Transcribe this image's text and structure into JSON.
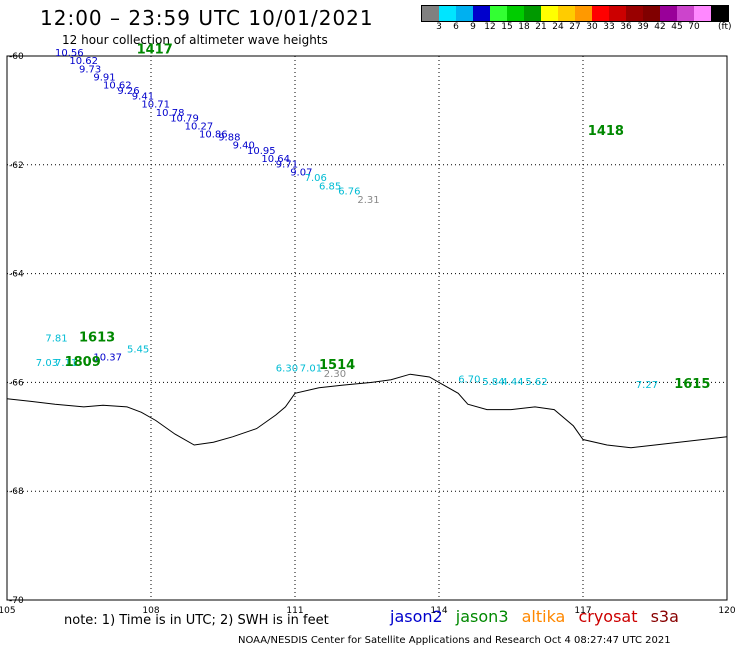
{
  "header": {
    "title": "12:00 – 23:59 UTC 10/01/2021",
    "subtitle": "12 hour collection of altimeter wave heights"
  },
  "colorbar": {
    "colors": [
      "#808080",
      "#00e5ff",
      "#00b0f0",
      "#0000cc",
      "#33ff33",
      "#00cc00",
      "#009900",
      "#ffff00",
      "#ffcc00",
      "#ff9900",
      "#ff0000",
      "#cc0000",
      "#990000",
      "#800000",
      "#990099",
      "#cc44cc",
      "#ff88ff",
      "#000000"
    ],
    "labels": [
      "3",
      "6",
      "9",
      "12",
      "15",
      "18",
      "21",
      "24",
      "27",
      "30",
      "33",
      "36",
      "39",
      "42",
      "45",
      "70"
    ],
    "unit": "(ft)"
  },
  "map": {
    "lon_range": [
      105,
      120
    ],
    "lat_range": [
      -70,
      -60
    ],
    "lon_ticks": [
      "105",
      "108",
      "111",
      "114",
      "117",
      "120"
    ],
    "lat_ticks": [
      "-60",
      "-62",
      "-64",
      "-66",
      "-68",
      "-70"
    ],
    "grid": "dotted",
    "satellite_colors": {
      "jason2": "#0000cc",
      "jason3": "#008800",
      "altika": "#ff8800",
      "cryosat": "#cc0000",
      "s3a": "#880000"
    },
    "observation_colors": {
      "cyan": "#00bcd4",
      "blue": "#0000cc",
      "gray": "#888888"
    },
    "observations": [
      {
        "lon": 106.0,
        "lat": -60.0,
        "value": "10.56",
        "color": "blue"
      },
      {
        "lon": 106.3,
        "lat": -60.15,
        "value": "10.62",
        "color": "blue"
      },
      {
        "lon": 106.5,
        "lat": -60.3,
        "value": "9.73",
        "color": "blue"
      },
      {
        "lon": 106.8,
        "lat": -60.45,
        "value": "9.91",
        "color": "blue"
      },
      {
        "lon": 107.0,
        "lat": -60.6,
        "value": "10.62",
        "color": "blue"
      },
      {
        "lon": 107.3,
        "lat": -60.7,
        "value": "9.26",
        "color": "blue"
      },
      {
        "lon": 107.6,
        "lat": -60.8,
        "value": "9.41",
        "color": "blue"
      },
      {
        "lon": 107.8,
        "lat": -60.95,
        "value": "10.71",
        "color": "blue"
      },
      {
        "lon": 108.1,
        "lat": -61.1,
        "value": "10.78",
        "color": "blue"
      },
      {
        "lon": 108.4,
        "lat": -61.2,
        "value": "10.79",
        "color": "blue"
      },
      {
        "lon": 108.7,
        "lat": -61.35,
        "value": "10.27",
        "color": "blue"
      },
      {
        "lon": 109.0,
        "lat": -61.5,
        "value": "10.86",
        "color": "blue"
      },
      {
        "lon": 109.4,
        "lat": -61.55,
        "value": "9.88",
        "color": "blue"
      },
      {
        "lon": 109.7,
        "lat": -61.7,
        "value": "9.40",
        "color": "blue"
      },
      {
        "lon": 110.0,
        "lat": -61.8,
        "value": "10.95",
        "color": "blue"
      },
      {
        "lon": 110.3,
        "lat": -61.95,
        "value": "10.64",
        "color": "blue"
      },
      {
        "lon": 110.6,
        "lat": -62.05,
        "value": "9.71",
        "color": "blue"
      },
      {
        "lon": 110.9,
        "lat": -62.2,
        "value": "9.07",
        "color": "blue"
      },
      {
        "lon": 111.2,
        "lat": -62.3,
        "value": "7.06",
        "color": "cyan"
      },
      {
        "lon": 111.5,
        "lat": -62.45,
        "value": "6.85",
        "color": "cyan"
      },
      {
        "lon": 111.9,
        "lat": -62.55,
        "value": "6.76",
        "color": "cyan"
      },
      {
        "lon": 112.3,
        "lat": -62.7,
        "value": "2.31",
        "color": "gray"
      },
      {
        "lon": 105.8,
        "lat": -65.25,
        "value": "7.81",
        "color": "cyan"
      },
      {
        "lon": 105.6,
        "lat": -65.7,
        "value": "7.03",
        "color": "cyan"
      },
      {
        "lon": 106.0,
        "lat": -65.7,
        "value": "7.11",
        "color": "cyan"
      },
      {
        "lon": 106.8,
        "lat": -65.6,
        "value": "10.37",
        "color": "blue"
      },
      {
        "lon": 107.5,
        "lat": -65.45,
        "value": "5.45",
        "color": "cyan"
      },
      {
        "lon": 110.6,
        "lat": -65.8,
        "value": "6.30",
        "color": "cyan"
      },
      {
        "lon": 111.1,
        "lat": -65.8,
        "value": "7.01",
        "color": "cyan"
      },
      {
        "lon": 111.6,
        "lat": -65.9,
        "value": "2.30",
        "color": "gray"
      },
      {
        "lon": 114.4,
        "lat": -66.0,
        "value": "6.70",
        "color": "cyan"
      },
      {
        "lon": 114.9,
        "lat": -66.05,
        "value": "5.84",
        "color": "cyan"
      },
      {
        "lon": 115.3,
        "lat": -66.05,
        "value": "4.44",
        "color": "cyan"
      },
      {
        "lon": 115.8,
        "lat": -66.05,
        "value": "5.62",
        "color": "cyan"
      },
      {
        "lon": 118.1,
        "lat": -66.1,
        "value": "7.27",
        "color": "cyan"
      }
    ],
    "passes": [
      {
        "lon": 107.7,
        "lat": -59.95,
        "label": "1417"
      },
      {
        "lon": 117.1,
        "lat": -61.45,
        "label": "1418"
      },
      {
        "lon": 106.5,
        "lat": -65.25,
        "label": "1613"
      },
      {
        "lon": 106.2,
        "lat": -65.7,
        "label": "1809"
      },
      {
        "lon": 111.5,
        "lat": -65.75,
        "label": "1514"
      },
      {
        "lon": 118.9,
        "lat": -66.1,
        "label": "1615"
      }
    ],
    "coastline": [
      [
        105.0,
        -66.3
      ],
      [
        105.5,
        -66.35
      ],
      [
        106.0,
        -66.4
      ],
      [
        106.6,
        -66.45
      ],
      [
        107.0,
        -66.42
      ],
      [
        107.5,
        -66.45
      ],
      [
        107.8,
        -66.55
      ],
      [
        108.1,
        -66.7
      ],
      [
        108.5,
        -66.95
      ],
      [
        108.9,
        -67.15
      ],
      [
        109.3,
        -67.1
      ],
      [
        109.7,
        -67.0
      ],
      [
        110.2,
        -66.85
      ],
      [
        110.6,
        -66.6
      ],
      [
        110.8,
        -66.45
      ],
      [
        111.0,
        -66.2
      ],
      [
        111.5,
        -66.1
      ],
      [
        112.0,
        -66.05
      ],
      [
        112.6,
        -66.0
      ],
      [
        113.0,
        -65.95
      ],
      [
        113.4,
        -65.85
      ],
      [
        113.8,
        -65.9
      ],
      [
        114.0,
        -66.0
      ],
      [
        114.4,
        -66.2
      ],
      [
        114.6,
        -66.4
      ],
      [
        115.0,
        -66.5
      ],
      [
        115.5,
        -66.5
      ],
      [
        116.0,
        -66.45
      ],
      [
        116.4,
        -66.5
      ],
      [
        116.8,
        -66.8
      ],
      [
        117.0,
        -67.05
      ],
      [
        117.5,
        -67.15
      ],
      [
        118.0,
        -67.2
      ],
      [
        118.5,
        -67.15
      ],
      [
        119.0,
        -67.1
      ],
      [
        119.5,
        -67.05
      ],
      [
        120.0,
        -67.0
      ]
    ]
  },
  "note": "note: 1) Time is in UTC; 2) SWH is in feet",
  "legend": {
    "jason2": "jason2",
    "jason3": "jason3",
    "altika": "altika",
    "cryosat": "cryosat",
    "s3a": "s3a"
  },
  "credit": "NOAA/NESDIS Center for Satellite Applications and Research    Oct  4 08:27:47 UTC 2021"
}
